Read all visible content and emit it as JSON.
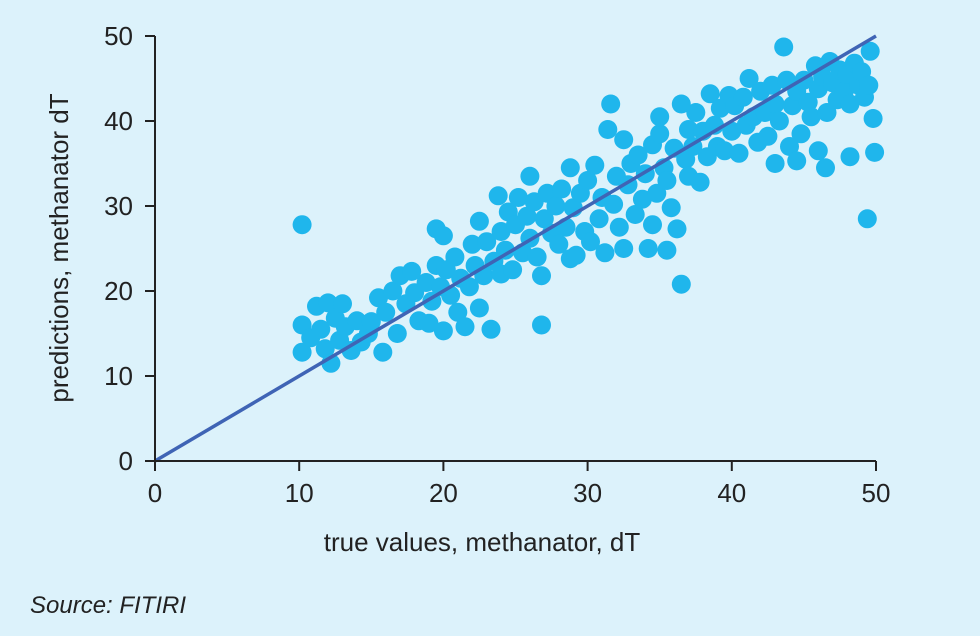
{
  "chart_data": {
    "type": "scatter",
    "title": "",
    "xlabel": "true values, methanator, dT",
    "ylabel": "predictions, methanator dT",
    "xlim": [
      0,
      50
    ],
    "ylim": [
      0,
      50
    ],
    "x_ticks": [
      0,
      10,
      20,
      30,
      40,
      50
    ],
    "y_ticks": [
      0,
      10,
      20,
      30,
      40,
      50
    ],
    "grid": false,
    "legend": "none",
    "source": "Source: FITIRI",
    "colors": {
      "points": "#1fb6ec",
      "fit_line": "#3f64b5",
      "axis": "#222222",
      "background": "#dcf2fb"
    },
    "fit_line": {
      "x": [
        0,
        50
      ],
      "y": [
        0,
        50
      ]
    },
    "series": [
      {
        "points": [
          [
            10.2,
            27.8
          ],
          [
            10.2,
            16.0
          ],
          [
            10.2,
            12.8
          ],
          [
            10.8,
            14.5
          ],
          [
            11.2,
            18.2
          ],
          [
            11.5,
            15.5
          ],
          [
            11.8,
            13.2
          ],
          [
            12.0,
            18.6
          ],
          [
            12.2,
            11.5
          ],
          [
            12.5,
            16.8
          ],
          [
            12.8,
            14.2
          ],
          [
            13.0,
            18.5
          ],
          [
            13.2,
            15.8
          ],
          [
            13.6,
            13.0
          ],
          [
            14.0,
            16.5
          ],
          [
            14.3,
            14.0
          ],
          [
            14.8,
            15.0
          ],
          [
            15.0,
            16.4
          ],
          [
            15.5,
            19.2
          ],
          [
            15.8,
            12.8
          ],
          [
            16.0,
            17.5
          ],
          [
            16.5,
            20.0
          ],
          [
            16.8,
            15.0
          ],
          [
            17.0,
            21.8
          ],
          [
            17.4,
            18.5
          ],
          [
            17.8,
            22.3
          ],
          [
            18.0,
            19.8
          ],
          [
            18.3,
            16.5
          ],
          [
            18.8,
            21.0
          ],
          [
            19.0,
            16.2
          ],
          [
            19.2,
            18.8
          ],
          [
            19.5,
            27.3
          ],
          [
            19.5,
            23.0
          ],
          [
            19.8,
            20.5
          ],
          [
            20.0,
            26.5
          ],
          [
            20.0,
            15.3
          ],
          [
            20.2,
            22.5
          ],
          [
            20.5,
            19.5
          ],
          [
            20.8,
            24.0
          ],
          [
            21.0,
            17.5
          ],
          [
            21.2,
            21.5
          ],
          [
            21.5,
            15.8
          ],
          [
            21.8,
            20.5
          ],
          [
            22.0,
            25.5
          ],
          [
            22.2,
            23.0
          ],
          [
            22.5,
            28.2
          ],
          [
            22.5,
            18.0
          ],
          [
            22.8,
            21.8
          ],
          [
            23.0,
            25.8
          ],
          [
            23.3,
            15.5
          ],
          [
            23.5,
            23.5
          ],
          [
            23.8,
            31.2
          ],
          [
            24.0,
            22.0
          ],
          [
            24.0,
            27.0
          ],
          [
            24.3,
            24.8
          ],
          [
            24.5,
            29.3
          ],
          [
            24.8,
            22.5
          ],
          [
            25.0,
            27.8
          ],
          [
            25.2,
            31.0
          ],
          [
            25.5,
            24.5
          ],
          [
            25.8,
            28.8
          ],
          [
            26.0,
            33.5
          ],
          [
            26.0,
            26.2
          ],
          [
            26.3,
            30.5
          ],
          [
            26.5,
            24.0
          ],
          [
            26.8,
            21.8
          ],
          [
            26.8,
            16.0
          ],
          [
            27.0,
            28.5
          ],
          [
            27.2,
            31.5
          ],
          [
            27.5,
            26.8
          ],
          [
            27.8,
            30.0
          ],
          [
            28.0,
            25.5
          ],
          [
            28.2,
            32.0
          ],
          [
            28.5,
            27.5
          ],
          [
            28.8,
            34.5
          ],
          [
            28.8,
            23.8
          ],
          [
            29.0,
            29.8
          ],
          [
            29.2,
            24.2
          ],
          [
            29.5,
            31.5
          ],
          [
            29.8,
            27.0
          ],
          [
            30.0,
            33.0
          ],
          [
            30.2,
            25.8
          ],
          [
            30.5,
            34.8
          ],
          [
            30.8,
            28.5
          ],
          [
            31.0,
            31.0
          ],
          [
            31.2,
            24.5
          ],
          [
            31.4,
            39.0
          ],
          [
            31.6,
            42.0
          ],
          [
            31.8,
            30.2
          ],
          [
            32.0,
            33.5
          ],
          [
            32.2,
            27.5
          ],
          [
            32.5,
            25.0
          ],
          [
            32.5,
            37.8
          ],
          [
            32.8,
            32.5
          ],
          [
            33.0,
            35.0
          ],
          [
            33.3,
            29.0
          ],
          [
            33.5,
            36.0
          ],
          [
            33.8,
            30.8
          ],
          [
            34.0,
            33.8
          ],
          [
            34.2,
            25.0
          ],
          [
            34.5,
            37.2
          ],
          [
            34.5,
            27.8
          ],
          [
            34.8,
            31.5
          ],
          [
            35.0,
            38.5
          ],
          [
            35.0,
            40.5
          ],
          [
            35.3,
            34.5
          ],
          [
            35.5,
            24.8
          ],
          [
            35.5,
            33.0
          ],
          [
            35.8,
            29.8
          ],
          [
            36.0,
            36.8
          ],
          [
            36.2,
            27.3
          ],
          [
            36.5,
            42.0
          ],
          [
            36.5,
            20.8
          ],
          [
            36.8,
            35.5
          ],
          [
            37.0,
            39.0
          ],
          [
            37.0,
            33.5
          ],
          [
            37.3,
            37.0
          ],
          [
            37.5,
            41.0
          ],
          [
            37.8,
            32.8
          ],
          [
            38.0,
            38.8
          ],
          [
            38.3,
            35.8
          ],
          [
            38.5,
            43.2
          ],
          [
            38.8,
            39.5
          ],
          [
            39.0,
            37.0
          ],
          [
            39.2,
            41.5
          ],
          [
            39.5,
            36.5
          ],
          [
            39.8,
            43.0
          ],
          [
            40.0,
            38.8
          ],
          [
            40.2,
            41.8
          ],
          [
            40.5,
            36.2
          ],
          [
            40.8,
            42.8
          ],
          [
            41.0,
            39.5
          ],
          [
            41.2,
            45.0
          ],
          [
            41.5,
            40.5
          ],
          [
            41.8,
            37.5
          ],
          [
            42.0,
            43.5
          ],
          [
            42.3,
            41.0
          ],
          [
            42.5,
            38.2
          ],
          [
            42.8,
            44.2
          ],
          [
            43.0,
            35.0
          ],
          [
            43.0,
            42.0
          ],
          [
            43.3,
            40.0
          ],
          [
            43.6,
            48.7
          ],
          [
            43.8,
            44.8
          ],
          [
            44.0,
            37.0
          ],
          [
            44.2,
            41.8
          ],
          [
            44.5,
            35.3
          ],
          [
            44.5,
            43.5
          ],
          [
            44.8,
            38.5
          ],
          [
            45.0,
            44.8
          ],
          [
            45.3,
            42.2
          ],
          [
            45.5,
            40.5
          ],
          [
            45.8,
            46.5
          ],
          [
            46.0,
            43.8
          ],
          [
            46.0,
            36.5
          ],
          [
            46.3,
            45.2
          ],
          [
            46.5,
            34.5
          ],
          [
            46.6,
            41.0
          ],
          [
            46.8,
            47.0
          ],
          [
            47.0,
            44.5
          ],
          [
            47.3,
            42.5
          ],
          [
            47.5,
            46.0
          ],
          [
            47.8,
            43.5
          ],
          [
            48.0,
            45.5
          ],
          [
            48.2,
            42.0
          ],
          [
            48.2,
            35.8
          ],
          [
            48.5,
            46.8
          ],
          [
            48.8,
            44.2
          ],
          [
            49.0,
            45.8
          ],
          [
            49.2,
            42.8
          ],
          [
            49.4,
            28.5
          ],
          [
            49.5,
            44.2
          ],
          [
            49.6,
            48.2
          ],
          [
            49.8,
            40.3
          ],
          [
            49.9,
            36.3
          ]
        ]
      }
    ]
  }
}
